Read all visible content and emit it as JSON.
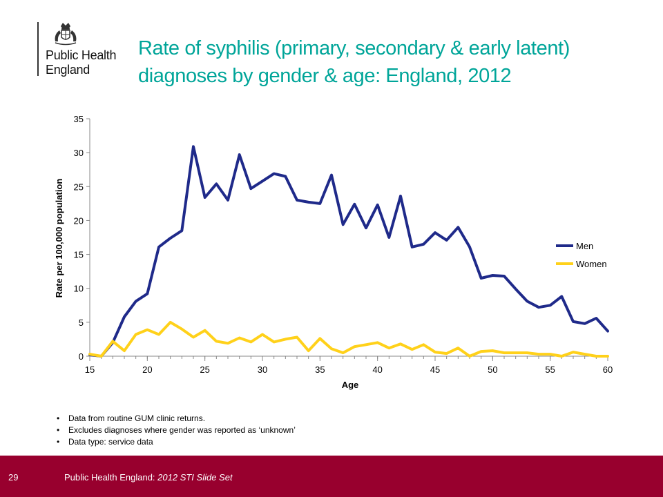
{
  "header": {
    "org_name_line1": "Public Health",
    "org_name_line2": "England",
    "title_line1": "Rate of syphilis (primary, secondary & early latent)",
    "title_line2": "diagnoses by gender & age: England, 2012"
  },
  "chart_data": {
    "type": "line",
    "title": "",
    "xlabel": "Age",
    "ylabel": "Rate per 100,000 population",
    "xlim": [
      15,
      60
    ],
    "ylim": [
      0,
      35
    ],
    "xticks": [
      15,
      20,
      25,
      30,
      35,
      40,
      45,
      50,
      55,
      60
    ],
    "yticks": [
      0,
      5,
      10,
      15,
      20,
      25,
      30,
      35
    ],
    "legend_position": "right",
    "grid": false,
    "x": [
      15,
      16,
      17,
      18,
      19,
      20,
      21,
      22,
      23,
      24,
      25,
      26,
      27,
      28,
      29,
      30,
      31,
      32,
      33,
      34,
      35,
      36,
      37,
      38,
      39,
      40,
      41,
      42,
      43,
      44,
      45,
      46,
      47,
      48,
      49,
      50,
      51,
      52,
      53,
      54,
      55,
      56,
      57,
      58,
      59,
      60
    ],
    "series": [
      {
        "name": "Men",
        "color": "#1f2a8a",
        "values": [
          0.2,
          0,
          2.0,
          5.8,
          8.1,
          9.2,
          16.1,
          17.4,
          18.5,
          30.9,
          23.4,
          25.4,
          23.0,
          29.7,
          24.7,
          25.8,
          26.9,
          26.5,
          23.0,
          22.7,
          22.5,
          26.7,
          19.4,
          22.4,
          18.9,
          22.3,
          17.5,
          23.6,
          16.1,
          16.5,
          18.2,
          17.1,
          19.0,
          16.1,
          11.5,
          11.9,
          11.8,
          9.9,
          8.1,
          7.2,
          7.5,
          8.8,
          5.1,
          4.8,
          5.6,
          3.7
        ]
      },
      {
        "name": "Women",
        "color": "#ffd11a",
        "values": [
          0.3,
          0,
          2.2,
          0.8,
          3.2,
          3.9,
          3.2,
          5.0,
          4.0,
          2.8,
          3.8,
          2.2,
          1.9,
          2.7,
          2.1,
          3.2,
          2.1,
          2.5,
          2.8,
          0.8,
          2.6,
          1.1,
          0.5,
          1.4,
          1.7,
          2.0,
          1.2,
          1.8,
          1.0,
          1.7,
          0.6,
          0.4,
          1.2,
          0,
          0.7,
          0.8,
          0.5,
          0.5,
          0.5,
          0.3,
          0.3,
          0,
          0.6,
          0.3,
          0,
          0
        ]
      }
    ]
  },
  "notes": [
    "Data from routine GUM clinic returns.",
    "Excludes diagnoses where gender was reported as ‘unknown’",
    "Data type: service data"
  ],
  "footer": {
    "page_number": "29",
    "org": "Public Health England: ",
    "publication": "2012 STI Slide Set",
    "background": "#98002e"
  }
}
